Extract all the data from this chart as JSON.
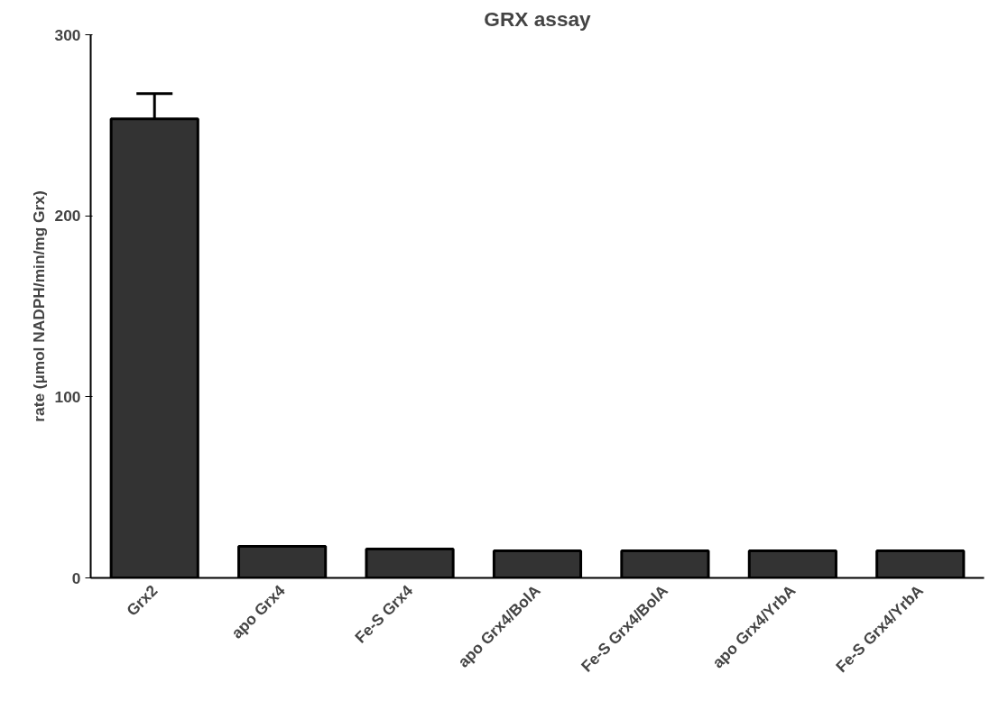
{
  "chart_data": {
    "type": "bar",
    "title": "GRX assay",
    "ylabel": "rate (µmol NADPH/min/mg Grx)",
    "categories": [
      "Grx2",
      "apo Grx4",
      "Fe-S Grx4",
      "apo Grx4/BolA",
      "Fe-S Grx4/BolA",
      "apo Grx4/YrbA",
      "Fe-S Grx4/YrbA"
    ],
    "values": [
      253.5,
      17.5,
      16,
      15,
      15,
      15,
      15
    ],
    "errors": [
      14,
      null,
      null,
      null,
      null,
      null,
      null
    ],
    "color": "#333333",
    "ylim": [
      0,
      300
    ],
    "yticks": [
      0,
      100,
      200,
      300
    ],
    "grid": false
  }
}
